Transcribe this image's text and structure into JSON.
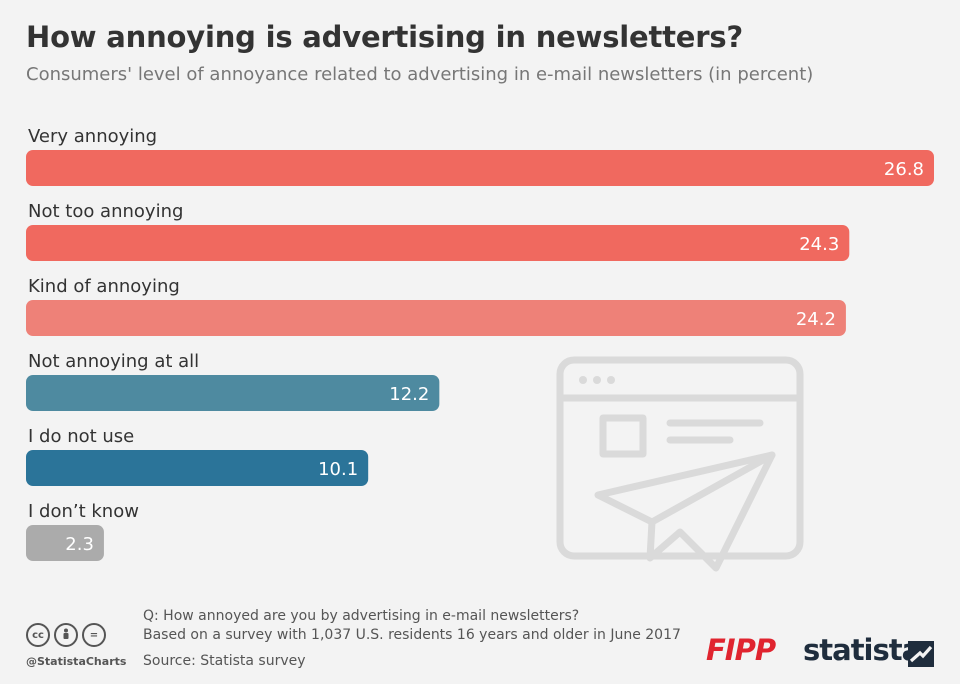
{
  "header": {
    "title": "How annoying is advertising in newsletters?",
    "subtitle": "Consumers' level of annoyance related to advertising in e-mail newsletters (in percent)"
  },
  "chart_data": {
    "type": "bar",
    "orientation": "horizontal",
    "title": "How annoying is advertising in newsletters?",
    "subtitle": "Consumers' level of annoyance related to advertising in e-mail newsletters (in percent)",
    "categories": [
      "Very annoying",
      "Not too annoying",
      "Kind of annoying",
      "Not annoying at all",
      "I do not use",
      "I don’t know"
    ],
    "values": [
      26.8,
      24.3,
      24.2,
      12.2,
      10.1,
      2.3
    ],
    "value_labels": [
      "26.8",
      "24.3",
      "24.2",
      "12.2",
      "10.1",
      "2.3"
    ],
    "colors": [
      "#f0695f",
      "#f0695f",
      "#ee8178",
      "#4e8aa0",
      "#2b7499",
      "#ababab"
    ],
    "xlim": [
      0,
      26.8
    ],
    "xlabel": "",
    "ylabel": "",
    "unit": "percent"
  },
  "footer": {
    "question": "Q: How annoyed are you by advertising in e-mail newsletters?",
    "base": "Based on a survey with 1,037 U.S. residents 16 years and older in June 2017",
    "source": "Source: Statista survey",
    "handle": "@StatistaCharts",
    "cc_icons": [
      "cc",
      "by",
      "="
    ],
    "partner_logo": "FIPP",
    "brand_logo": "statista"
  }
}
